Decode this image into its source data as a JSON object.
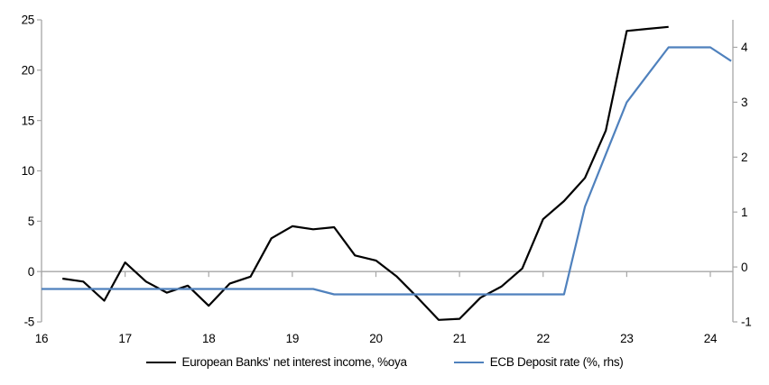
{
  "chart_data": {
    "type": "line",
    "title": "",
    "x_axis": {
      "tick_values": [
        16,
        17,
        18,
        19,
        20,
        21,
        22,
        23,
        24
      ],
      "tick_labels": [
        "16",
        "17",
        "18",
        "19",
        "20",
        "21",
        "22",
        "23",
        "24"
      ],
      "xlim": [
        16,
        24.27
      ]
    },
    "left_axis": {
      "tick_values": [
        -5,
        0,
        5,
        10,
        15,
        20,
        25
      ],
      "tick_labels": [
        "-5",
        "0",
        "5",
        "10",
        "15",
        "20",
        "25"
      ],
      "ylim": [
        -5,
        25
      ]
    },
    "right_axis": {
      "tick_values": [
        -1,
        0,
        1,
        2,
        3,
        4
      ],
      "tick_labels": [
        "-1",
        "0",
        "1",
        "2",
        "3",
        "4"
      ],
      "ylim": [
        -1,
        4.5
      ]
    },
    "grid": "zero-line-only",
    "legend_position": "bottom-center",
    "colors": {
      "axis": "#a6a6a6",
      "zero_line": "#a6a6a6",
      "text": "#000000"
    },
    "series": [
      {
        "name": "European Banks' net interest income, %oya",
        "color": "#000000",
        "axis": "left",
        "x": [
          16.25,
          16.5,
          16.75,
          17.0,
          17.25,
          17.5,
          17.75,
          18.0,
          18.25,
          18.5,
          18.75,
          19.0,
          19.25,
          19.5,
          19.75,
          20.0,
          20.25,
          20.5,
          20.75,
          21.0,
          21.25,
          21.5,
          21.75,
          22.0,
          22.25,
          22.5,
          22.75,
          23.0,
          23.25,
          23.5
        ],
        "values": [
          -0.7,
          -1.0,
          -2.9,
          0.9,
          -1.0,
          -2.1,
          -1.4,
          -3.4,
          -1.2,
          -0.5,
          3.3,
          4.5,
          4.2,
          4.4,
          1.6,
          1.1,
          -0.5,
          -2.6,
          -4.8,
          -4.7,
          -2.6,
          -1.5,
          0.3,
          5.2,
          7.0,
          9.3,
          14.0,
          23.9,
          24.1,
          24.3
        ]
      },
      {
        "name": "ECB Deposit rate (%, rhs)",
        "color": "#4f81bd",
        "axis": "right",
        "x": [
          16.0,
          16.25,
          16.5,
          16.75,
          17.0,
          17.25,
          17.5,
          17.75,
          18.0,
          18.25,
          18.5,
          18.75,
          19.0,
          19.25,
          19.5,
          19.75,
          20.0,
          20.25,
          20.5,
          20.75,
          21.0,
          21.25,
          21.5,
          21.75,
          22.0,
          22.25,
          22.5,
          22.75,
          23.0,
          23.25,
          23.5,
          23.75,
          24.0,
          24.25
        ],
        "values": [
          -0.4,
          -0.4,
          -0.4,
          -0.4,
          -0.4,
          -0.4,
          -0.4,
          -0.4,
          -0.4,
          -0.4,
          -0.4,
          -0.4,
          -0.4,
          -0.4,
          -0.5,
          -0.5,
          -0.5,
          -0.5,
          -0.5,
          -0.5,
          -0.5,
          -0.5,
          -0.5,
          -0.5,
          -0.5,
          -0.5,
          1.1,
          2.05,
          3.0,
          3.5,
          4.0,
          4.0,
          4.0,
          3.75
        ]
      }
    ]
  }
}
